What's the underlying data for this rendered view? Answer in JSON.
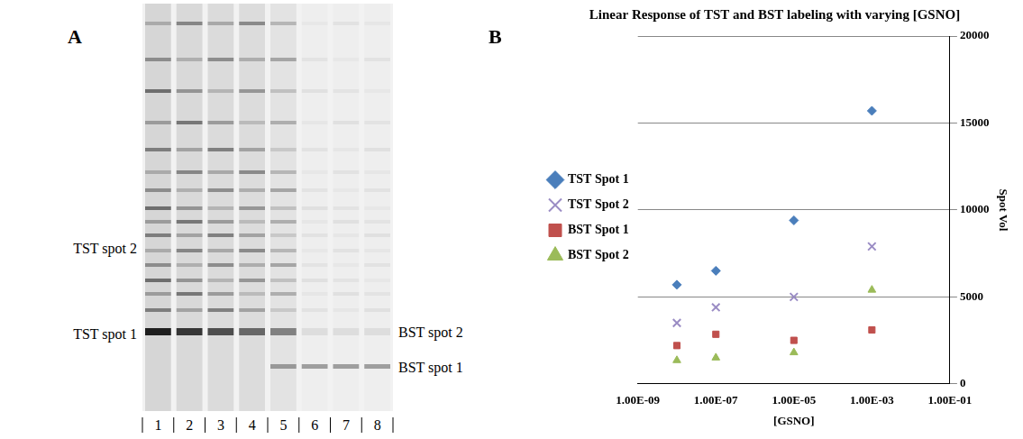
{
  "gel": {
    "letter": "A",
    "lanes": [
      "1",
      "2",
      "3",
      "4",
      "5",
      "6",
      "7",
      "8"
    ],
    "left_labels": [
      "TST spot 2",
      "TST spot 1"
    ],
    "right_labels": [
      "BST spot 2",
      "BST spot 1"
    ]
  },
  "chart_panel": {
    "letter": "B"
  },
  "chart_data": {
    "type": "scatter",
    "title": "Linear Response of TST and BST labeling with varying [GSNO]",
    "x_label": "[GSNO]",
    "y_label": "Spot Vol",
    "log": "x",
    "grid": true,
    "legend": "left",
    "x": [
      1e-08,
      1e-07,
      1e-05,
      0.001
    ],
    "xlim": [
      1e-09,
      0.1
    ],
    "xticks": [
      {
        "value": 1e-09,
        "label": "1.00E-09"
      },
      {
        "value": 1e-07,
        "label": "1.00E-07"
      },
      {
        "value": 1e-05,
        "label": "1.00E-05"
      },
      {
        "value": 0.001,
        "label": "1.00E-03"
      },
      {
        "value": 0.1,
        "label": "1.00E-01"
      }
    ],
    "ylim": [
      0,
      20000
    ],
    "yticks": [
      0,
      5000,
      10000,
      15000,
      20000
    ],
    "series": [
      {
        "name": "TST Spot 1",
        "color": "#4a7ebb",
        "marker": "diamond",
        "values": [
          5700,
          6500,
          9400,
          15700
        ]
      },
      {
        "name": "TST Spot 2",
        "color": "#9a8cc4",
        "marker": "x",
        "values": [
          3500,
          4400,
          5000,
          7900
        ]
      },
      {
        "name": "BST Spot 1",
        "color": "#c0504d",
        "marker": "square",
        "values": [
          2200,
          2850,
          2500,
          3100
        ]
      },
      {
        "name": "BST Spot 2",
        "color": "#9bbb59",
        "marker": "triangle",
        "values": [
          1350,
          1500,
          1800,
          5400
        ]
      }
    ]
  }
}
